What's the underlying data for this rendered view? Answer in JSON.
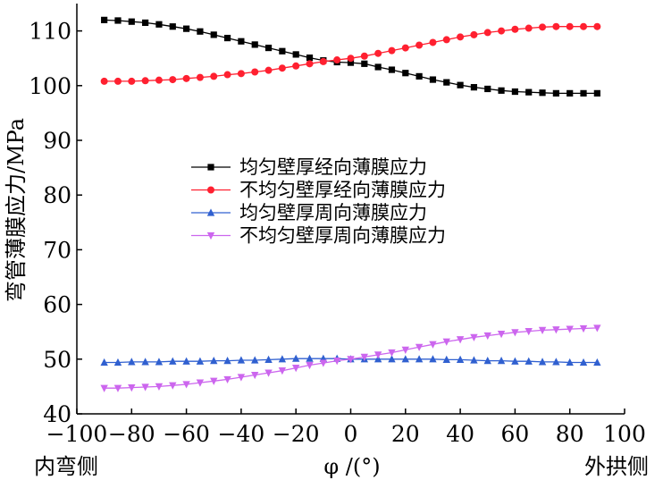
{
  "chart_data": {
    "type": "line",
    "title": "",
    "xlabel": "φ /(°)",
    "ylabel": "弯管薄膜应力/MPa",
    "xlim": [
      -100,
      100
    ],
    "ylim": [
      40,
      115
    ],
    "xticks": [
      -100,
      -80,
      -60,
      -40,
      -20,
      0,
      20,
      40,
      60,
      80,
      100
    ],
    "yticks": [
      40,
      50,
      60,
      70,
      80,
      90,
      100,
      110
    ],
    "x_left_label": "内弯侧",
    "x_right_label": "外拱侧",
    "legend_position": "center-left",
    "grid": false,
    "x": [
      -90,
      -85,
      -80,
      -75,
      -70,
      -65,
      -60,
      -55,
      -50,
      -45,
      -40,
      -35,
      -30,
      -25,
      -20,
      -15,
      -10,
      -5,
      0,
      5,
      10,
      15,
      20,
      25,
      30,
      35,
      40,
      45,
      50,
      55,
      60,
      65,
      70,
      75,
      80,
      85,
      90
    ],
    "series": [
      {
        "name": "均匀壁厚经向薄膜应力",
        "color": "#000000",
        "marker": "square",
        "values": [
          112.0,
          111.9,
          111.7,
          111.5,
          111.2,
          110.8,
          110.4,
          109.9,
          109.3,
          108.7,
          108.1,
          107.5,
          106.9,
          106.3,
          105.7,
          105.1,
          104.6,
          104.3,
          104.2,
          104.0,
          103.4,
          102.9,
          102.3,
          101.7,
          101.1,
          100.6,
          100.1,
          99.7,
          99.4,
          99.1,
          98.9,
          98.8,
          98.7,
          98.6,
          98.6,
          98.6,
          98.6
        ]
      },
      {
        "name": "不均匀壁厚经向薄膜应力",
        "color": "#ff2030",
        "marker": "circle",
        "values": [
          100.8,
          100.8,
          100.8,
          100.9,
          101.0,
          101.1,
          101.3,
          101.5,
          101.7,
          102.0,
          102.2,
          102.5,
          102.8,
          103.2,
          103.6,
          104.0,
          104.4,
          104.7,
          105.0,
          105.4,
          105.9,
          106.4,
          106.9,
          107.4,
          107.9,
          108.4,
          108.9,
          109.3,
          109.7,
          110.0,
          110.3,
          110.5,
          110.7,
          110.8,
          110.8,
          110.8,
          110.8
        ]
      },
      {
        "name": "均匀壁厚周向薄膜应力",
        "color": "#3060d0",
        "marker": "triangle-up",
        "values": [
          49.4,
          49.4,
          49.5,
          49.5,
          49.5,
          49.6,
          49.6,
          49.6,
          49.7,
          49.7,
          49.8,
          49.8,
          49.9,
          50.0,
          50.1,
          50.1,
          50.1,
          50.1,
          50.0,
          50.0,
          50.0,
          50.0,
          50.0,
          50.0,
          50.0,
          49.9,
          49.9,
          49.8,
          49.7,
          49.7,
          49.6,
          49.6,
          49.5,
          49.5,
          49.4,
          49.4,
          49.4
        ]
      },
      {
        "name": "不均匀壁厚周向薄膜应力",
        "color": "#cc66ee",
        "marker": "triangle-down",
        "values": [
          44.7,
          44.7,
          44.8,
          44.9,
          45.0,
          45.2,
          45.4,
          45.7,
          46.0,
          46.3,
          46.7,
          47.1,
          47.5,
          47.9,
          48.4,
          48.9,
          49.3,
          49.7,
          50.0,
          50.4,
          50.8,
          51.2,
          51.7,
          52.2,
          52.7,
          53.2,
          53.6,
          54.0,
          54.3,
          54.6,
          54.9,
          55.1,
          55.3,
          55.4,
          55.5,
          55.6,
          55.7
        ]
      }
    ]
  }
}
